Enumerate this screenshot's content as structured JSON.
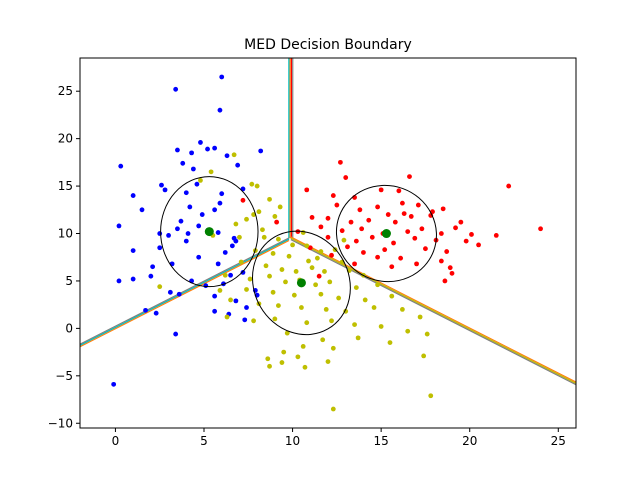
{
  "chart_data": {
    "type": "scatter",
    "title": "MED Decision Boundary",
    "xlabel": "",
    "ylabel": "",
    "xlim": [
      -2.0,
      26.0
    ],
    "ylim": [
      -10.5,
      28.5
    ],
    "xticks": [
      0,
      5,
      10,
      15,
      20,
      25
    ],
    "yticks": [
      -10,
      -5,
      0,
      5,
      10,
      15,
      20,
      25
    ],
    "grid": false,
    "legend": "none",
    "series": [
      {
        "color": "#0000ff",
        "points": [
          [
            3.4,
            25.2
          ],
          [
            6.0,
            26.5
          ],
          [
            5.9,
            23.0
          ],
          [
            4.8,
            19.6
          ],
          [
            3.5,
            18.8
          ],
          [
            0.3,
            17.1
          ],
          [
            3.8,
            17.4
          ],
          [
            4.4,
            16.8
          ],
          [
            4.3,
            18.5
          ],
          [
            5.2,
            18.9
          ],
          [
            5.6,
            19.0
          ],
          [
            6.3,
            18.2
          ],
          [
            6.9,
            17.2
          ],
          [
            8.2,
            18.7
          ],
          [
            1.0,
            14.0
          ],
          [
            2.6,
            15.1
          ],
          [
            4.6,
            15.2
          ],
          [
            4.0,
            14.3
          ],
          [
            2.8,
            14.6
          ],
          [
            6.0,
            14.2
          ],
          [
            7.2,
            14.7
          ],
          [
            5.9,
            13.2
          ],
          [
            1.5,
            12.5
          ],
          [
            4.9,
            12.0
          ],
          [
            5.6,
            12.5
          ],
          [
            3.7,
            11.3
          ],
          [
            4.7,
            10.8
          ],
          [
            2.5,
            10.0
          ],
          [
            3.0,
            9.8
          ],
          [
            3.5,
            10.5
          ],
          [
            4.1,
            10.0
          ],
          [
            5.8,
            10.1
          ],
          [
            6.8,
            9.2
          ],
          [
            0.2,
            10.8
          ],
          [
            1.0,
            8.2
          ],
          [
            2.5,
            8.5
          ],
          [
            4.0,
            9.2
          ],
          [
            6.2,
            8.0
          ],
          [
            6.6,
            8.7
          ],
          [
            4.7,
            7.5
          ],
          [
            2.1,
            6.5
          ],
          [
            3.2,
            6.8
          ],
          [
            5.8,
            6.8
          ],
          [
            6.5,
            5.6
          ],
          [
            7.2,
            5.9
          ],
          [
            4.3,
            5.0
          ],
          [
            5.1,
            4.5
          ],
          [
            6.1,
            4.7
          ],
          [
            0.2,
            5.0
          ],
          [
            1.0,
            5.2
          ],
          [
            2.0,
            5.5
          ],
          [
            3.1,
            3.8
          ],
          [
            3.6,
            3.6
          ],
          [
            5.6,
            3.4
          ],
          [
            6.8,
            2.9
          ],
          [
            1.7,
            1.9
          ],
          [
            2.3,
            1.6
          ],
          [
            5.6,
            1.8
          ],
          [
            6.4,
            1.5
          ],
          [
            7.3,
            0.9
          ],
          [
            7.4,
            2.2
          ],
          [
            8.0,
            3.5
          ],
          [
            3.4,
            -0.6
          ],
          [
            -0.1,
            -5.9
          ],
          [
            6.7,
            9.5
          ],
          [
            7.9,
            4.0
          ],
          [
            4.2,
            12.8
          ]
        ]
      },
      {
        "color": "#ff0000",
        "points": [
          [
            12.7,
            17.5
          ],
          [
            13.0,
            15.9
          ],
          [
            16.6,
            16.0
          ],
          [
            22.2,
            15.0
          ],
          [
            10.8,
            14.6
          ],
          [
            12.3,
            14.0
          ],
          [
            13.5,
            13.8
          ],
          [
            15.0,
            14.6
          ],
          [
            16.0,
            14.5
          ],
          [
            12.5,
            13.0
          ],
          [
            13.8,
            12.5
          ],
          [
            14.8,
            12.8
          ],
          [
            16.2,
            13.2
          ],
          [
            17.1,
            13.0
          ],
          [
            18.5,
            12.6
          ],
          [
            11.1,
            11.7
          ],
          [
            12.0,
            11.6
          ],
          [
            13.3,
            11.2
          ],
          [
            14.3,
            11.4
          ],
          [
            15.8,
            11.2
          ],
          [
            16.7,
            11.8
          ],
          [
            17.8,
            11.9
          ],
          [
            19.5,
            11.2
          ],
          [
            11.6,
            10.7
          ],
          [
            12.8,
            10.3
          ],
          [
            13.9,
            10.5
          ],
          [
            15.1,
            10.0
          ],
          [
            16.5,
            10.2
          ],
          [
            17.3,
            10.5
          ],
          [
            18.4,
            10.0
          ],
          [
            19.2,
            10.6
          ],
          [
            20.1,
            9.9
          ],
          [
            21.5,
            9.8
          ],
          [
            24.0,
            10.5
          ],
          [
            12.0,
            9.6
          ],
          [
            13.6,
            9.2
          ],
          [
            14.5,
            9.6
          ],
          [
            15.7,
            9.0
          ],
          [
            16.9,
            9.5
          ],
          [
            18.1,
            9.3
          ],
          [
            19.8,
            9.2
          ],
          [
            11.0,
            8.5
          ],
          [
            13.1,
            8.6
          ],
          [
            14.0,
            8.0
          ],
          [
            15.2,
            8.3
          ],
          [
            17.5,
            8.4
          ],
          [
            18.7,
            8.1
          ],
          [
            12.2,
            7.7
          ],
          [
            14.8,
            7.5
          ],
          [
            16.1,
            7.4
          ],
          [
            18.4,
            7.1
          ],
          [
            13.5,
            6.8
          ],
          [
            15.6,
            6.5
          ],
          [
            17.0,
            6.8
          ],
          [
            18.9,
            6.4
          ],
          [
            20.5,
            8.8
          ],
          [
            11.5,
            5.5
          ],
          [
            19.0,
            5.8
          ],
          [
            18.6,
            5.0
          ],
          [
            7.2,
            13.5
          ],
          [
            9.1,
            11.2
          ],
          [
            10.3,
            10.2
          ],
          [
            16.3,
            12.1
          ],
          [
            17.9,
            12.3
          ],
          [
            15.4,
            12.0
          ]
        ]
      },
      {
        "color": "#bfbf00",
        "points": [
          [
            6.7,
            18.3
          ],
          [
            4.8,
            15.6
          ],
          [
            7.7,
            15.2
          ],
          [
            8.0,
            15.0
          ],
          [
            8.7,
            13.6
          ],
          [
            8.1,
            12.3
          ],
          [
            9.0,
            11.8
          ],
          [
            7.4,
            11.5
          ],
          [
            6.8,
            11.0
          ],
          [
            8.3,
            10.4
          ],
          [
            5.5,
            9.8
          ],
          [
            7.0,
            9.6
          ],
          [
            8.4,
            9.6
          ],
          [
            9.2,
            9.4
          ],
          [
            10.0,
            8.8
          ],
          [
            10.8,
            8.7
          ],
          [
            11.6,
            8.1
          ],
          [
            12.4,
            8.3
          ],
          [
            7.9,
            8.2
          ],
          [
            8.9,
            7.9
          ],
          [
            9.8,
            7.6
          ],
          [
            10.9,
            7.1
          ],
          [
            11.4,
            7.4
          ],
          [
            12.8,
            7.0
          ],
          [
            7.1,
            7.0
          ],
          [
            8.5,
            6.6
          ],
          [
            9.4,
            6.2
          ],
          [
            10.2,
            6.0
          ],
          [
            11.1,
            6.4
          ],
          [
            11.8,
            6.0
          ],
          [
            13.2,
            6.1
          ],
          [
            14.0,
            5.6
          ],
          [
            6.2,
            5.6
          ],
          [
            7.6,
            5.2
          ],
          [
            8.7,
            5.5
          ],
          [
            9.6,
            4.9
          ],
          [
            10.4,
            5.1
          ],
          [
            11.3,
            4.6
          ],
          [
            12.1,
            4.9
          ],
          [
            13.6,
            4.3
          ],
          [
            14.8,
            4.6
          ],
          [
            2.5,
            4.4
          ],
          [
            5.9,
            4.0
          ],
          [
            7.4,
            4.1
          ],
          [
            8.9,
            3.8
          ],
          [
            10.1,
            3.5
          ],
          [
            11.6,
            3.6
          ],
          [
            12.6,
            3.2
          ],
          [
            14.1,
            3.0
          ],
          [
            15.6,
            3.4
          ],
          [
            6.5,
            3.0
          ],
          [
            8.1,
            2.6
          ],
          [
            9.2,
            2.4
          ],
          [
            10.5,
            2.2
          ],
          [
            11.9,
            2.0
          ],
          [
            13.0,
            1.8
          ],
          [
            14.6,
            2.2
          ],
          [
            16.2,
            2.0
          ],
          [
            6.3,
            1.2
          ],
          [
            7.8,
            0.8
          ],
          [
            9.0,
            1.0
          ],
          [
            10.8,
            0.6
          ],
          [
            12.2,
            0.8
          ],
          [
            13.5,
            0.4
          ],
          [
            15.0,
            0.2
          ],
          [
            17.2,
            1.2
          ],
          [
            17.6,
            -0.6
          ],
          [
            9.7,
            -0.5
          ],
          [
            11.7,
            -1.2
          ],
          [
            13.7,
            -1.0
          ],
          [
            15.5,
            -1.5
          ],
          [
            16.5,
            -0.3
          ],
          [
            9.5,
            -2.5
          ],
          [
            10.6,
            -1.9
          ],
          [
            12.3,
            -2.1
          ],
          [
            8.6,
            -3.2
          ],
          [
            9.4,
            -3.6
          ],
          [
            10.3,
            -3.0
          ],
          [
            12.0,
            -3.5
          ],
          [
            8.7,
            -4.0
          ],
          [
            10.7,
            -4.1
          ],
          [
            17.4,
            -2.9
          ],
          [
            17.8,
            -7.1
          ],
          [
            12.3,
            -8.5
          ],
          [
            5.4,
            16.5
          ],
          [
            9.3,
            12.8
          ],
          [
            10.6,
            10.1
          ],
          [
            12.9,
            9.3
          ],
          [
            7.8,
            12.0
          ]
        ]
      }
    ],
    "class_means": [
      {
        "color": "#008000",
        "x": 5.3,
        "y": 10.2
      },
      {
        "color": "#008000",
        "x": 15.3,
        "y": 10.0
      },
      {
        "color": "#008000",
        "x": 10.5,
        "y": 4.8
      }
    ],
    "ellipses": [
      {
        "cx": 5.3,
        "cy": 10.2,
        "rx": 2.75,
        "ry": 5.8,
        "angle_deg": 0
      },
      {
        "cx": 15.3,
        "cy": 10.0,
        "rx": 2.7,
        "ry": 5.3,
        "angle_deg": 70
      },
      {
        "cx": 10.5,
        "cy": 4.8,
        "rx": 3.0,
        "ry": 5.0,
        "angle_deg": 120
      }
    ],
    "boundary_lines": [
      {
        "colors": [
          "#00bfbf",
          "#ff7f0e",
          "#ff0000",
          "#808080"
        ],
        "points": [
          [
            9.9,
            28.5
          ],
          [
            9.9,
            9.5
          ]
        ]
      },
      {
        "colors": [
          "#808080",
          "#00bfbf",
          "#ff7f0e"
        ],
        "points": [
          [
            -2.0,
            -1.8
          ],
          [
            9.8,
            9.4
          ]
        ]
      },
      {
        "colors": [
          "#ff7f0e",
          "#bfbf00",
          "#808080"
        ],
        "points": [
          [
            9.9,
            9.5
          ],
          [
            26.0,
            -5.8
          ]
        ]
      }
    ]
  }
}
